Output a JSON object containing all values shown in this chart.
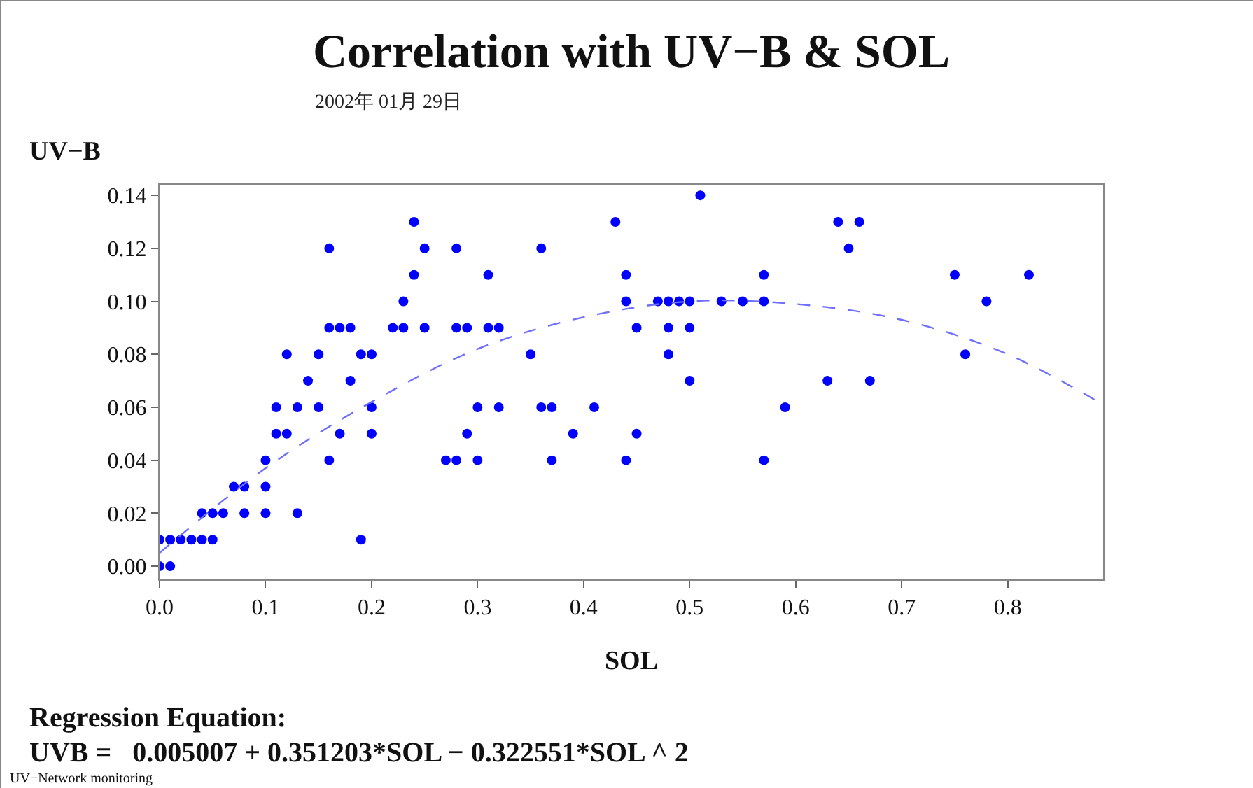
{
  "chart_data": {
    "type": "scatter",
    "title": "Correlation with UV−B & SOL",
    "subtitle": "2002年 01月 29日",
    "xlabel": "SOL",
    "ylabel": "UV−B",
    "annotations": [
      "Regression Equation:",
      "UVB =   0.005007 + 0.351203*SOL − 0.322551*SOL ^ 2",
      "UV−Network monitoring"
    ],
    "xlim": [
      0,
      0.89
    ],
    "ylim": [
      -0.005,
      0.144
    ],
    "xticks": [
      {
        "value": 0,
        "label": "0.0"
      },
      0.1,
      0.2,
      0.3,
      0.4,
      0.5,
      0.6,
      0.7,
      0.8
    ],
    "yticks": [
      {
        "value": 0,
        "label": "0.00"
      },
      0.02,
      0.04,
      0.06,
      {
        "value": 0.08,
        "label": "0.08"
      },
      {
        "value": 0.1,
        "label": "0.10"
      },
      0.12,
      0.14
    ],
    "marker": "circle",
    "series": [
      {
        "color": "#0000ff",
        "x": [
          0.0,
          0.01,
          0.0,
          0.01,
          0.02,
          0.03,
          0.04,
          0.05,
          0.19,
          0.04,
          0.05,
          0.06,
          0.08,
          0.1,
          0.13,
          0.07,
          0.08,
          0.1,
          0.1,
          0.16,
          0.11,
          0.12,
          0.17,
          0.2,
          0.11,
          0.13,
          0.15,
          0.2,
          0.14,
          0.18,
          0.12,
          0.15,
          0.19,
          0.2,
          0.16,
          0.17,
          0.18,
          0.22,
          0.23,
          0.25,
          0.28,
          0.29,
          0.31,
          0.32,
          0.23,
          0.24,
          0.16,
          0.25,
          0.28,
          0.24,
          0.3,
          0.3,
          0.27,
          0.28,
          0.29,
          0.32,
          0.31,
          0.36,
          0.43,
          0.51,
          0.44,
          0.57,
          0.44,
          0.47,
          0.48,
          0.49,
          0.5,
          0.53,
          0.55,
          0.57,
          0.45,
          0.48,
          0.5,
          0.35,
          0.48,
          0.5,
          0.36,
          0.37,
          0.41,
          0.59,
          0.39,
          0.45,
          0.37,
          0.44,
          0.57,
          0.64,
          0.66,
          0.65,
          0.75,
          0.82,
          0.78,
          0.76,
          0.63,
          0.67
        ],
        "values": [
          0,
          0,
          0.01,
          0.01,
          0.01,
          0.01,
          0.01,
          0.01,
          0.01,
          0.02,
          0.02,
          0.02,
          0.02,
          0.02,
          0.02,
          0.03,
          0.03,
          0.03,
          0.04,
          0.04,
          0.05,
          0.05,
          0.05,
          0.05,
          0.06,
          0.06,
          0.06,
          0.06,
          0.07,
          0.07,
          0.08,
          0.08,
          0.08,
          0.08,
          0.09,
          0.09,
          0.09,
          0.09,
          0.09,
          0.09,
          0.09,
          0.09,
          0.09,
          0.09,
          0.1,
          0.11,
          0.12,
          0.12,
          0.12,
          0.13,
          0.06,
          0.04,
          0.04,
          0.04,
          0.05,
          0.06,
          0.11,
          0.12,
          0.13,
          0.14,
          0.11,
          0.11,
          0.1,
          0.1,
          0.1,
          0.1,
          0.1,
          0.1,
          0.1,
          0.1,
          0.09,
          0.09,
          0.09,
          0.08,
          0.08,
          0.07,
          0.06,
          0.06,
          0.06,
          0.06,
          0.05,
          0.05,
          0.04,
          0.04,
          0.04,
          0.13,
          0.13,
          0.12,
          0.11,
          0.11,
          0.1,
          0.08,
          0.07,
          0.07
        ]
      },
      {
        "type": "line",
        "color": "#6f6fff",
        "line_style": "dashed",
        "marker": "none",
        "x": [
          0,
          0.1,
          0.2,
          0.3,
          0.4,
          0.5,
          0.6,
          0.7,
          0.8,
          0.89
        ],
        "values": [
          0.005,
          0.037,
          0.062,
          0.082,
          0.094,
          0.1,
          0.099,
          0.093,
          0.08,
          0.061
        ]
      }
    ]
  }
}
